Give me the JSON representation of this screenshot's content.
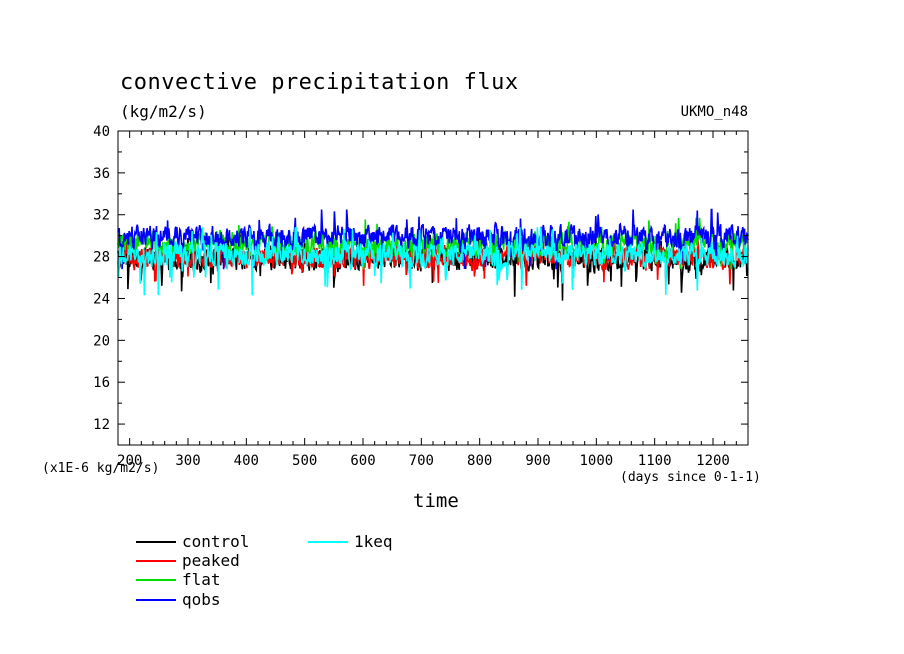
{
  "header": {
    "title": "convective precipitation flux",
    "units": "(kg/m2/s)",
    "model": "UKMO_n48",
    "scale_note": "(x1E-6 kg/m2/s)",
    "x_units": "(days since 0-1-1)"
  },
  "chart_data": {
    "type": "line",
    "title": "convective precipitation flux",
    "xlabel": "time",
    "ylabel": "(kg/m2/s)",
    "xlim": [
      180,
      1260
    ],
    "ylim": [
      10,
      40
    ],
    "x_ticks": [
      200,
      300,
      400,
      500,
      600,
      700,
      800,
      900,
      1000,
      1100,
      1200
    ],
    "x_tick_labels": [
      "200",
      "300",
      "400",
      "500",
      "600",
      "700",
      "800",
      "900",
      "1000",
      "1100",
      "1200"
    ],
    "y_ticks": [
      12,
      16,
      20,
      24,
      28,
      32,
      36,
      40
    ],
    "y_tick_labels": [
      "12",
      "16",
      "20",
      "24",
      "28",
      "32",
      "36",
      "40"
    ],
    "series": [
      {
        "name": "control",
        "color": "#000000",
        "mean": 27.8,
        "amplitude": 1.6,
        "min": 23.8,
        "max": 30.2
      },
      {
        "name": "peaked",
        "color": "#ff0000",
        "mean": 27.9,
        "amplitude": 1.4,
        "min": 25.2,
        "max": 30.0
      },
      {
        "name": "flat",
        "color": "#00dd00",
        "mean": 29.2,
        "amplitude": 1.5,
        "min": 26.5,
        "max": 31.7
      },
      {
        "name": "qobs",
        "color": "#0000ff",
        "mean": 29.9,
        "amplitude": 1.5,
        "min": 26.8,
        "max": 32.5
      },
      {
        "name": "1keq",
        "color": "#00ffff",
        "mean": 28.2,
        "amplitude": 1.5,
        "min": 24.3,
        "max": 30.8
      }
    ],
    "legend_placement": "bottom-left"
  }
}
